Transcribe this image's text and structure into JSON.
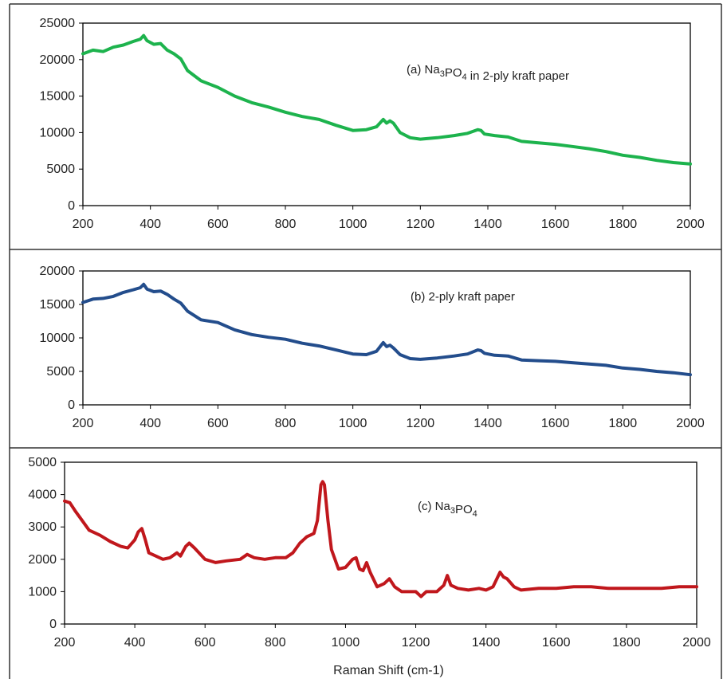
{
  "chart_data": [
    {
      "type": "line",
      "annotation": {
        "pre": "(a) Na",
        "s1": "3",
        "mid": "PO",
        "s2": "4",
        "post": " in 2-ply kraft paper"
      },
      "color": "#1db34d",
      "xlim": [
        200,
        2000
      ],
      "ylim": [
        0,
        25000
      ],
      "xticks": [
        200,
        400,
        600,
        800,
        1000,
        1200,
        1400,
        1600,
        1800,
        2000
      ],
      "yticks": [
        0,
        5000,
        10000,
        15000,
        20000,
        25000
      ],
      "series": [
        {
          "x": [
            200,
            230,
            260,
            290,
            320,
            350,
            370,
            380,
            390,
            410,
            430,
            450,
            470,
            490,
            510,
            550,
            600,
            650,
            700,
            750,
            800,
            850,
            900,
            950,
            1000,
            1040,
            1070,
            1090,
            1100,
            1110,
            1120,
            1140,
            1170,
            1200,
            1250,
            1300,
            1340,
            1370,
            1380,
            1390,
            1420,
            1460,
            1500,
            1550,
            1600,
            1650,
            1700,
            1750,
            1800,
            1850,
            1900,
            1950,
            2000
          ],
          "y": [
            20800,
            21300,
            21100,
            21700,
            22000,
            22500,
            22800,
            23300,
            22600,
            22100,
            22200,
            21300,
            20800,
            20100,
            18500,
            17100,
            16200,
            15000,
            14100,
            13500,
            12800,
            12200,
            11800,
            11000,
            10300,
            10400,
            10800,
            11800,
            11300,
            11600,
            11300,
            10000,
            9300,
            9100,
            9300,
            9600,
            9900,
            10400,
            10300,
            9800,
            9600,
            9400,
            8800,
            8600,
            8400,
            8100,
            7800,
            7400,
            6900,
            6600,
            6200,
            5900,
            5700
          ]
        }
      ]
    },
    {
      "type": "line",
      "annotation": {
        "pre": "(b) 2-ply kraft paper",
        "s1": "",
        "mid": "",
        "s2": "",
        "post": ""
      },
      "color": "#234d8c",
      "xlim": [
        200,
        2000
      ],
      "ylim": [
        0,
        20000
      ],
      "xticks": [
        200,
        400,
        600,
        800,
        1000,
        1200,
        1400,
        1600,
        1800,
        2000
      ],
      "yticks": [
        0,
        5000,
        10000,
        15000,
        20000
      ],
      "series": [
        {
          "x": [
            200,
            230,
            260,
            290,
            320,
            350,
            370,
            380,
            390,
            410,
            430,
            450,
            470,
            490,
            510,
            550,
            600,
            650,
            700,
            750,
            800,
            850,
            900,
            950,
            1000,
            1040,
            1070,
            1090,
            1100,
            1110,
            1120,
            1140,
            1170,
            1200,
            1250,
            1300,
            1340,
            1370,
            1380,
            1390,
            1420,
            1460,
            1500,
            1550,
            1600,
            1650,
            1700,
            1750,
            1800,
            1850,
            1900,
            1950,
            2000
          ],
          "y": [
            15300,
            15800,
            15900,
            16200,
            16800,
            17200,
            17500,
            18000,
            17300,
            16900,
            17000,
            16500,
            15800,
            15200,
            14000,
            12700,
            12300,
            11200,
            10500,
            10100,
            9800,
            9200,
            8800,
            8200,
            7600,
            7500,
            8000,
            9300,
            8700,
            8900,
            8500,
            7500,
            6900,
            6800,
            7000,
            7300,
            7600,
            8200,
            8100,
            7700,
            7400,
            7300,
            6700,
            6600,
            6500,
            6300,
            6100,
            5900,
            5500,
            5300,
            5000,
            4800,
            4500
          ]
        }
      ]
    },
    {
      "type": "line",
      "annotation": {
        "pre": "(c) Na",
        "s1": "3",
        "mid": "PO",
        "s2": "4",
        "post": ""
      },
      "color": "#c0171c",
      "xlim": [
        200,
        2000
      ],
      "ylim": [
        0,
        5000
      ],
      "xticks": [
        200,
        400,
        600,
        800,
        1000,
        1200,
        1400,
        1600,
        1800,
        2000
      ],
      "yticks": [
        0,
        1000,
        2000,
        3000,
        4000,
        5000
      ],
      "xlabel": "Raman Shift (cm-1)",
      "series": [
        {
          "x": [
            200,
            215,
            230,
            250,
            270,
            300,
            330,
            360,
            380,
            400,
            410,
            420,
            430,
            440,
            460,
            480,
            500,
            520,
            530,
            545,
            555,
            570,
            600,
            630,
            660,
            700,
            720,
            740,
            770,
            800,
            830,
            850,
            870,
            890,
            900,
            910,
            920,
            930,
            935,
            940,
            950,
            960,
            980,
            1000,
            1020,
            1030,
            1040,
            1050,
            1060,
            1070,
            1090,
            1110,
            1125,
            1140,
            1160,
            1180,
            1200,
            1215,
            1230,
            1260,
            1280,
            1290,
            1300,
            1320,
            1350,
            1380,
            1400,
            1420,
            1440,
            1450,
            1460,
            1480,
            1500,
            1550,
            1600,
            1650,
            1700,
            1750,
            1800,
            1850,
            1900,
            1950,
            2000
          ],
          "y": [
            3800,
            3750,
            3500,
            3200,
            2900,
            2750,
            2550,
            2400,
            2350,
            2600,
            2850,
            2950,
            2600,
            2200,
            2100,
            2000,
            2050,
            2200,
            2100,
            2400,
            2500,
            2350,
            2000,
            1900,
            1950,
            2000,
            2150,
            2050,
            2000,
            2050,
            2050,
            2200,
            2500,
            2700,
            2750,
            2800,
            3200,
            4300,
            4400,
            4300,
            3200,
            2300,
            1700,
            1750,
            2000,
            2050,
            1700,
            1650,
            1900,
            1600,
            1150,
            1250,
            1400,
            1150,
            1000,
            1000,
            1000,
            850,
            1000,
            1000,
            1200,
            1500,
            1200,
            1100,
            1050,
            1100,
            1050,
            1150,
            1600,
            1450,
            1400,
            1150,
            1050,
            1100,
            1100,
            1150,
            1150,
            1100,
            1100,
            1100,
            1100,
            1150,
            1150
          ]
        }
      ]
    }
  ]
}
